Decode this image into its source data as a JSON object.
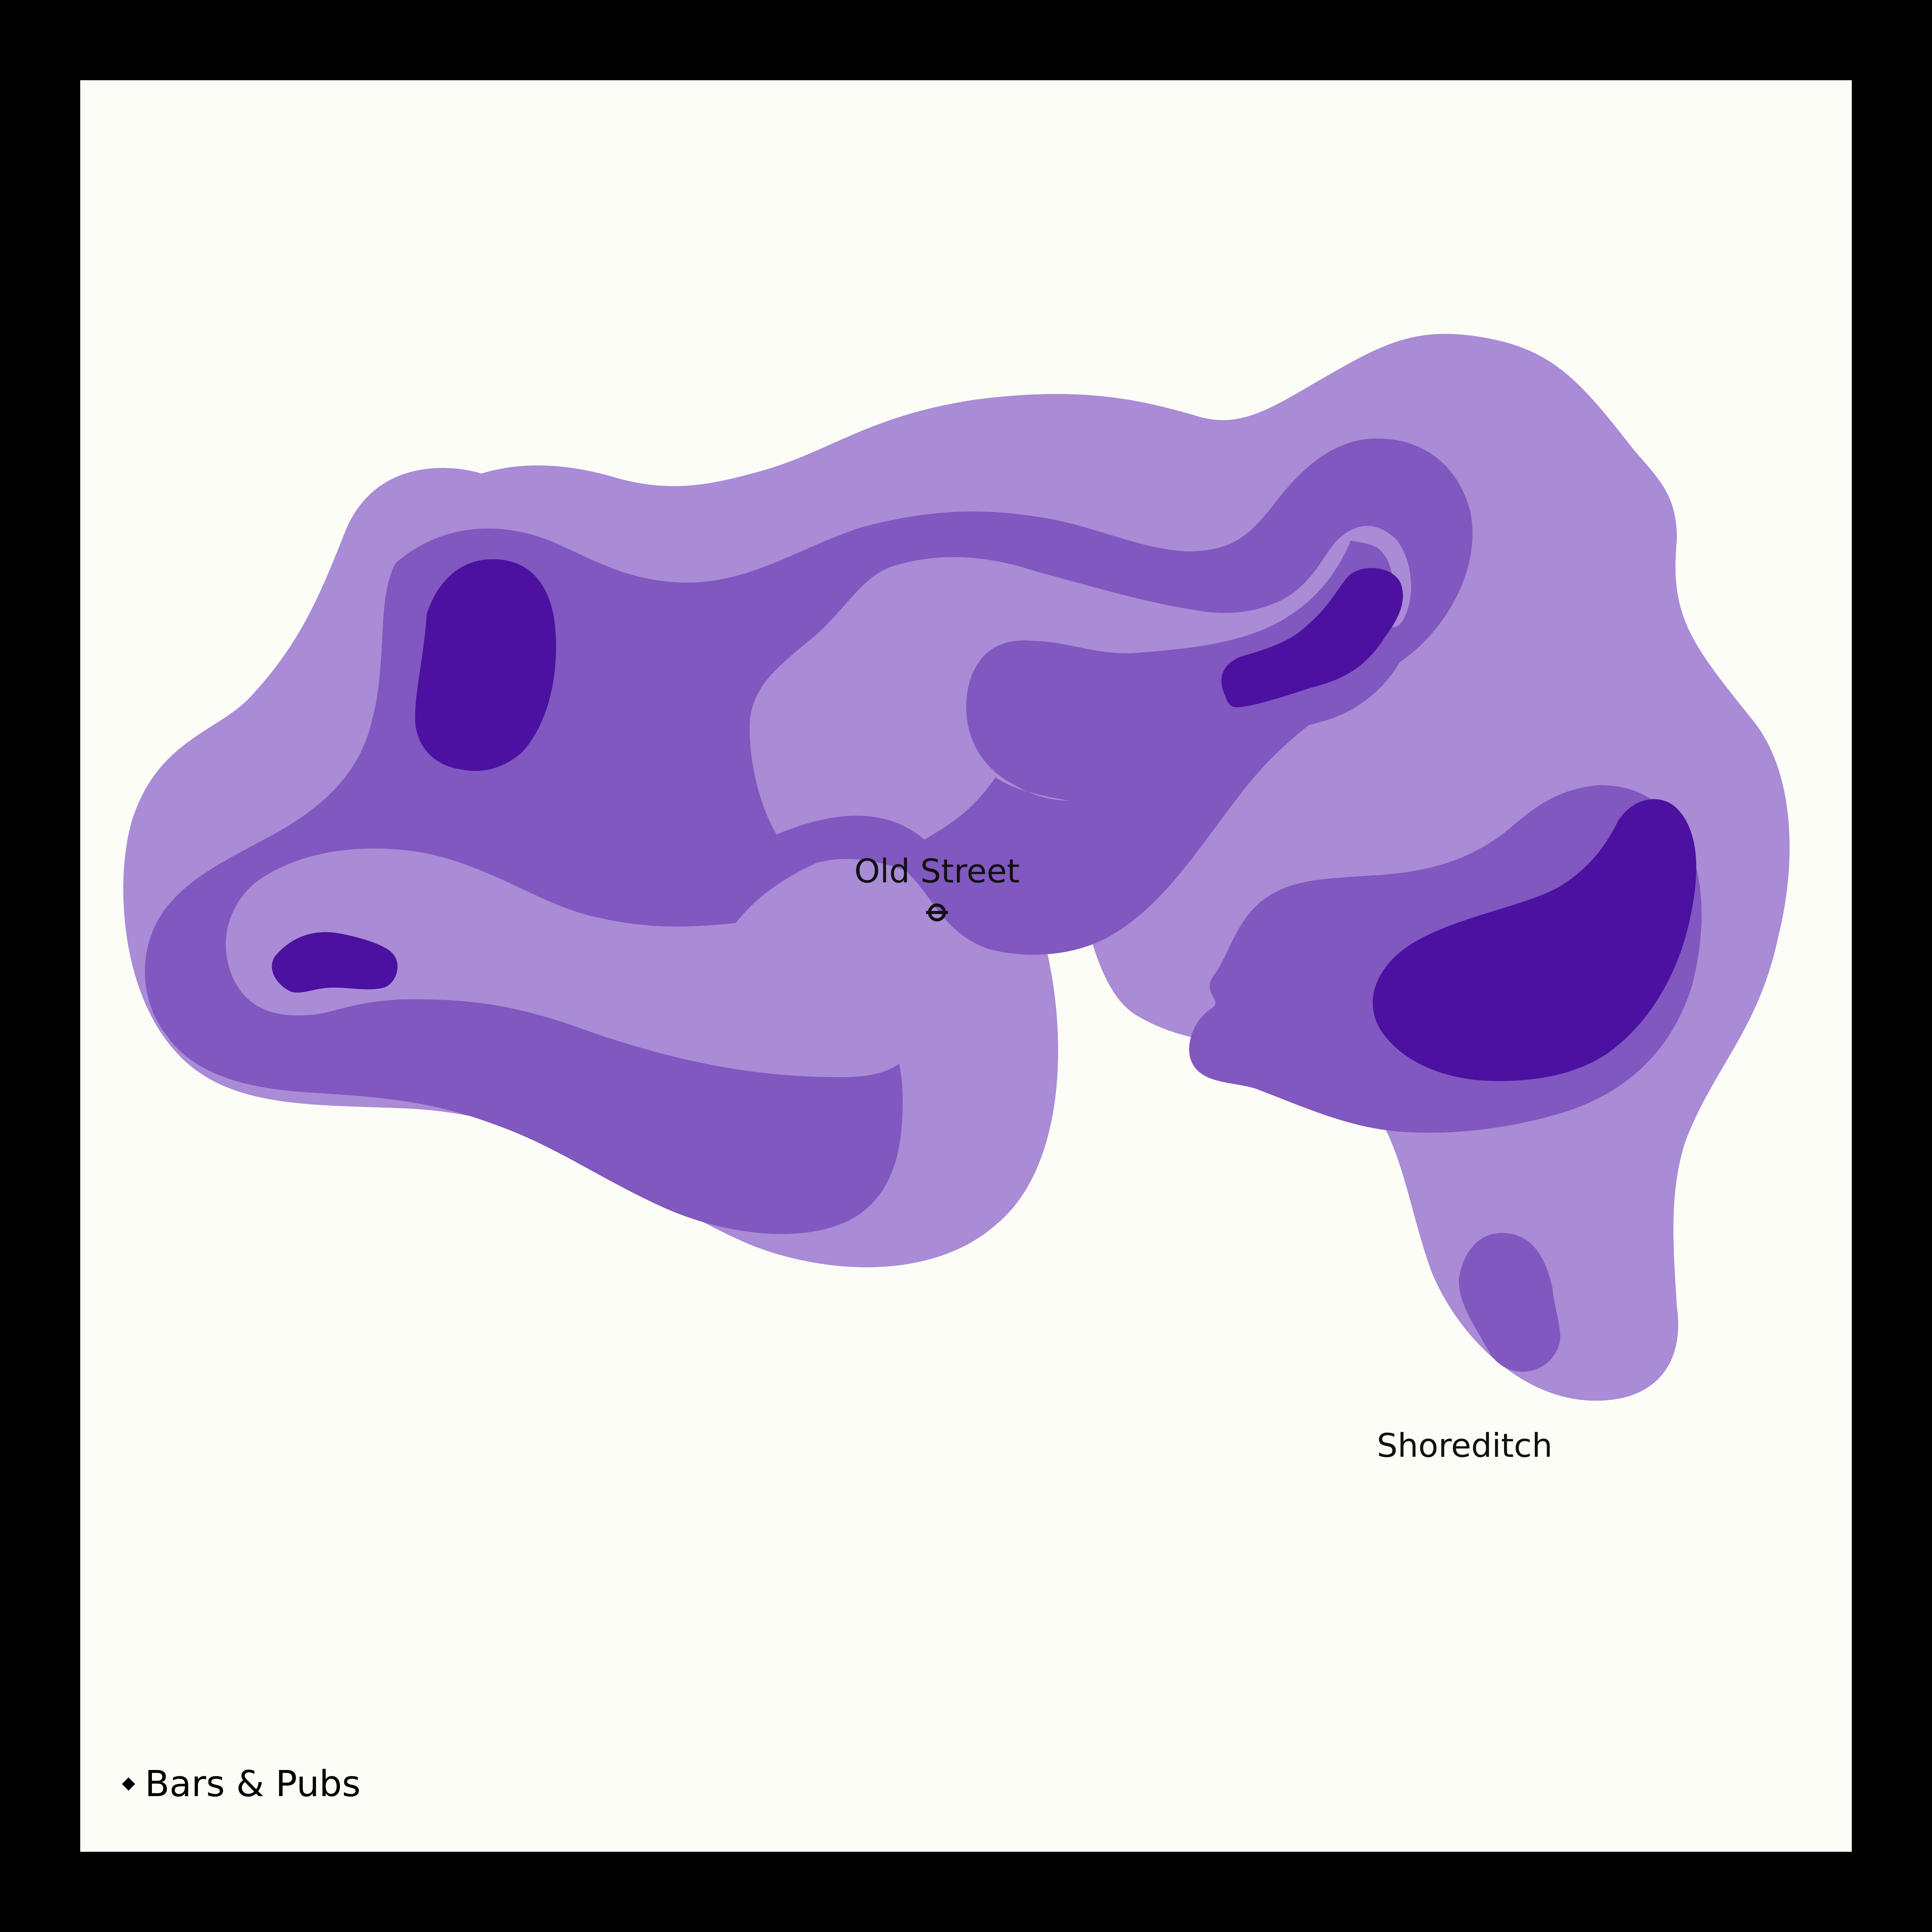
{
  "map": {
    "labels": {
      "old_street": "Old Street",
      "shoreditch": "Shoreditch"
    },
    "legend": {
      "label": "Bars & Pubs",
      "marker_icon": "diamond-bullet-icon"
    },
    "colors": {
      "frame": "#000000",
      "background": "#fdfdf8",
      "density_low": "#a98bd6",
      "density_mid": "#8157c0",
      "density_high": "#4c11a1",
      "label": "#111111"
    },
    "icons": {
      "station": "underground-station-icon"
    }
  }
}
